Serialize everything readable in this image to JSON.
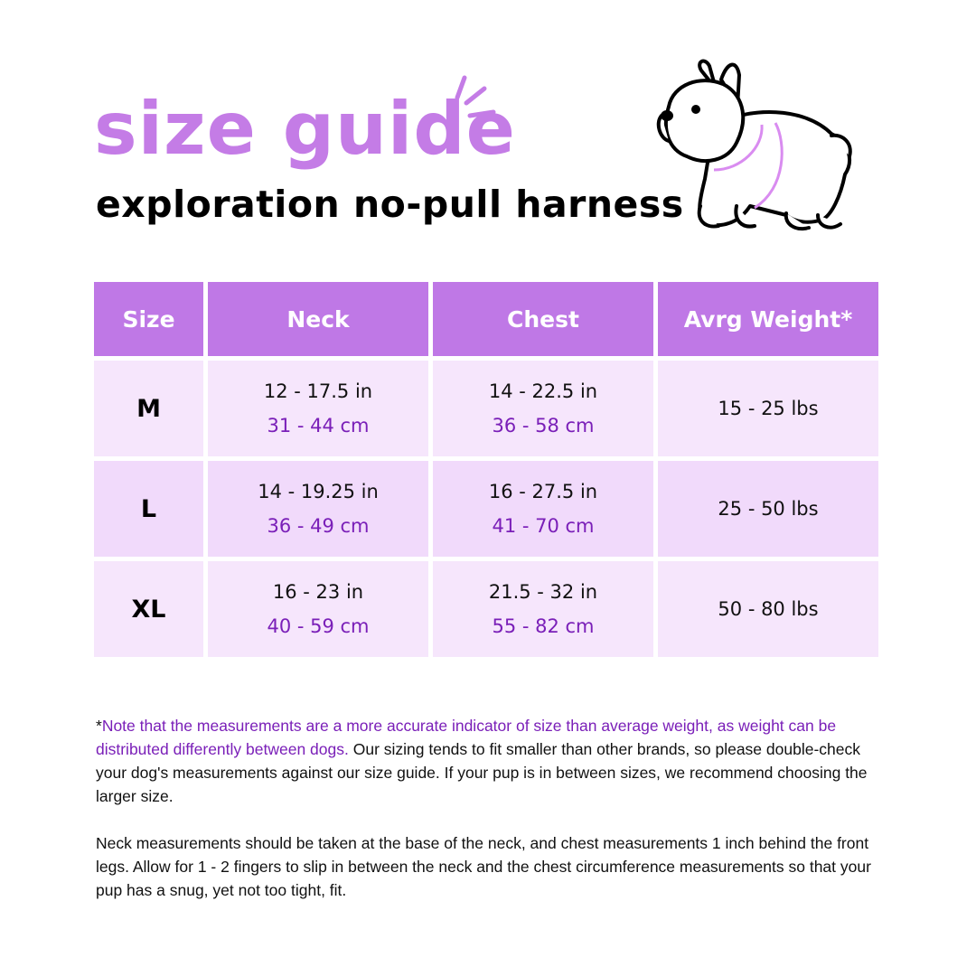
{
  "header": {
    "title": "size guide",
    "subtitle": "exploration no-pull harness"
  },
  "illustration": {
    "icon": "french-bulldog-harness-illustration",
    "accent": "#d98cf0"
  },
  "colors": {
    "title": "#c47ce6",
    "header_bg": "#bf78e6",
    "row_light": "#f6e6fc",
    "row_alt": "#f1dafb",
    "metric_text": "#7a1fb8"
  },
  "table": {
    "columns": [
      "Size",
      "Neck",
      "Chest",
      "Avrg Weight*"
    ],
    "rows": [
      {
        "size": "M",
        "neck_in": "12 - 17.5 in",
        "neck_cm": "31 - 44 cm",
        "chest_in": "14 - 22.5 in",
        "chest_cm": "36 - 58 cm",
        "weight": "15 - 25 lbs"
      },
      {
        "size": "L",
        "neck_in": "14 - 19.25 in",
        "neck_cm": "36 - 49 cm",
        "chest_in": "16 - 27.5 in",
        "chest_cm": "41 - 70 cm",
        "weight": "25 - 50 lbs"
      },
      {
        "size": "XL",
        "neck_in": "16 - 23 in",
        "neck_cm": "40 - 59 cm",
        "chest_in": "21.5 - 32 in",
        "chest_cm": "55 - 82 cm",
        "weight": "50 - 80 lbs"
      }
    ]
  },
  "notes": {
    "asterisk": "*",
    "highlight": "Note that the measurements are a more accurate indicator of size than average weight, as weight can be distributed differently between dogs.",
    "para1_rest": " Our sizing tends to fit smaller than other brands, so please double-check your dog's measurements against our size guide. If your pup is in between sizes, we recommend choosing the larger size.",
    "para2": "Neck measurements should be taken at the base of the neck, and chest measurements 1 inch behind the front legs. Allow for 1 - 2 fingers to slip in between the neck and the chest circumference measurements so that your pup has a snug, yet not too tight, fit."
  }
}
